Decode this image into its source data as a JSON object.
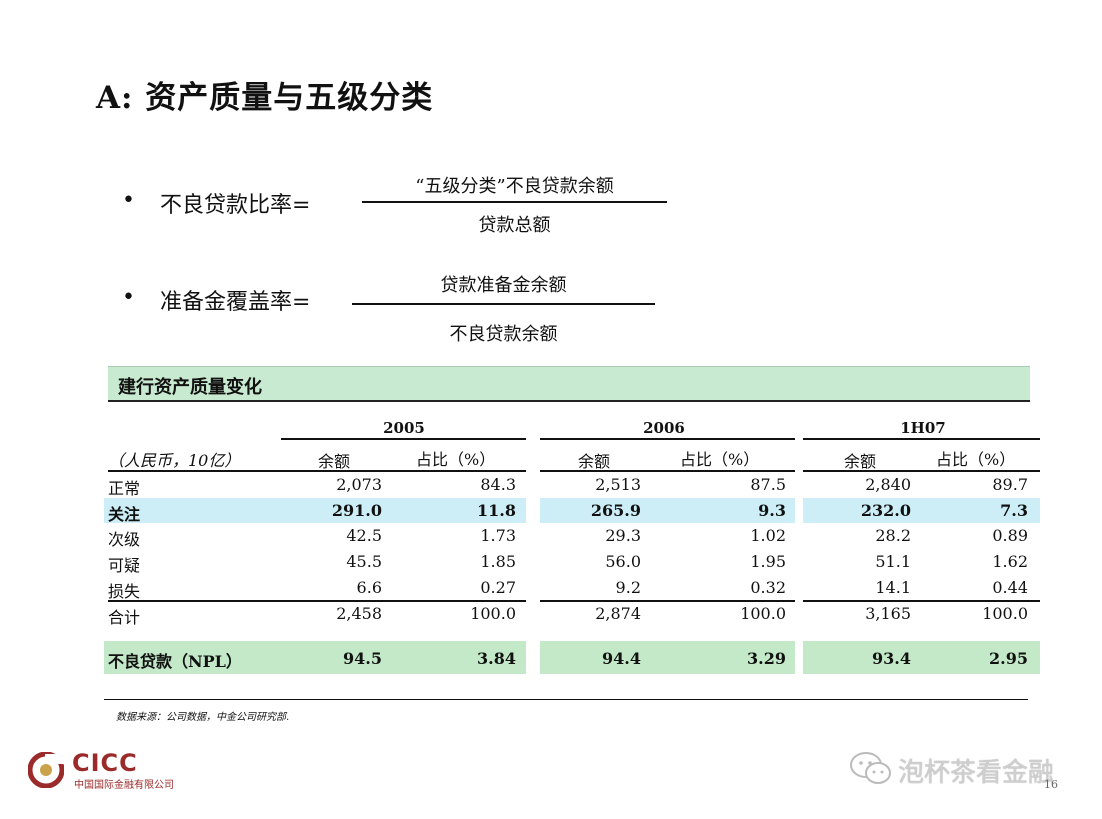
{
  "slide": {
    "title": "A:  资产质量与五级分类",
    "page_number": "16"
  },
  "formulas": [
    {
      "bullet": "•",
      "label": "不良贷款比率=",
      "numerator": "“五级分类”不良贷款余额",
      "denominator": "贷款总额"
    },
    {
      "bullet": "•",
      "label": "准备金覆盖率=",
      "numerator": "贷款准备金余额",
      "denominator": "不良贷款余额"
    }
  ],
  "table": {
    "section_title": "建行资产质量变化",
    "unit": "（人民币，10亿）",
    "years": [
      "2005",
      "2006",
      "1H07"
    ],
    "col_amount": "余额",
    "col_ratio": "占比（%）",
    "rows": [
      {
        "label": "正常",
        "values": [
          "2,073",
          "84.3",
          "2,513",
          "87.5",
          "2,840",
          "89.7"
        ]
      },
      {
        "label": "关注",
        "values": [
          "291.0",
          "11.8",
          "265.9",
          "9.3",
          "232.0",
          "7.3"
        ]
      },
      {
        "label": "次级",
        "values": [
          "42.5",
          "1.73",
          "29.3",
          "1.02",
          "28.2",
          "0.89"
        ]
      },
      {
        "label": "可疑",
        "values": [
          "45.5",
          "1.85",
          "56.0",
          "1.95",
          "51.1",
          "1.62"
        ]
      },
      {
        "label": "损失",
        "values": [
          "6.6",
          "0.27",
          "9.2",
          "0.32",
          "14.1",
          "0.44"
        ]
      },
      {
        "label": "合计",
        "values": [
          "2,458",
          "100.0",
          "2,874",
          "100.0",
          "3,165",
          "100.0"
        ]
      }
    ],
    "npl_row": {
      "label": "不良贷款（NPL）",
      "values": [
        "94.5",
        "3.84",
        "94.4",
        "3.29",
        "93.4",
        "2.95"
      ]
    },
    "source": "数据来源：公司数据，中金公司研究部."
  },
  "branding": {
    "logo": "CICC",
    "logo_sub": "中国国际金融有限公司",
    "watermark": "泡杯茶看金融",
    "logo_color": "#9b2a2a"
  }
}
